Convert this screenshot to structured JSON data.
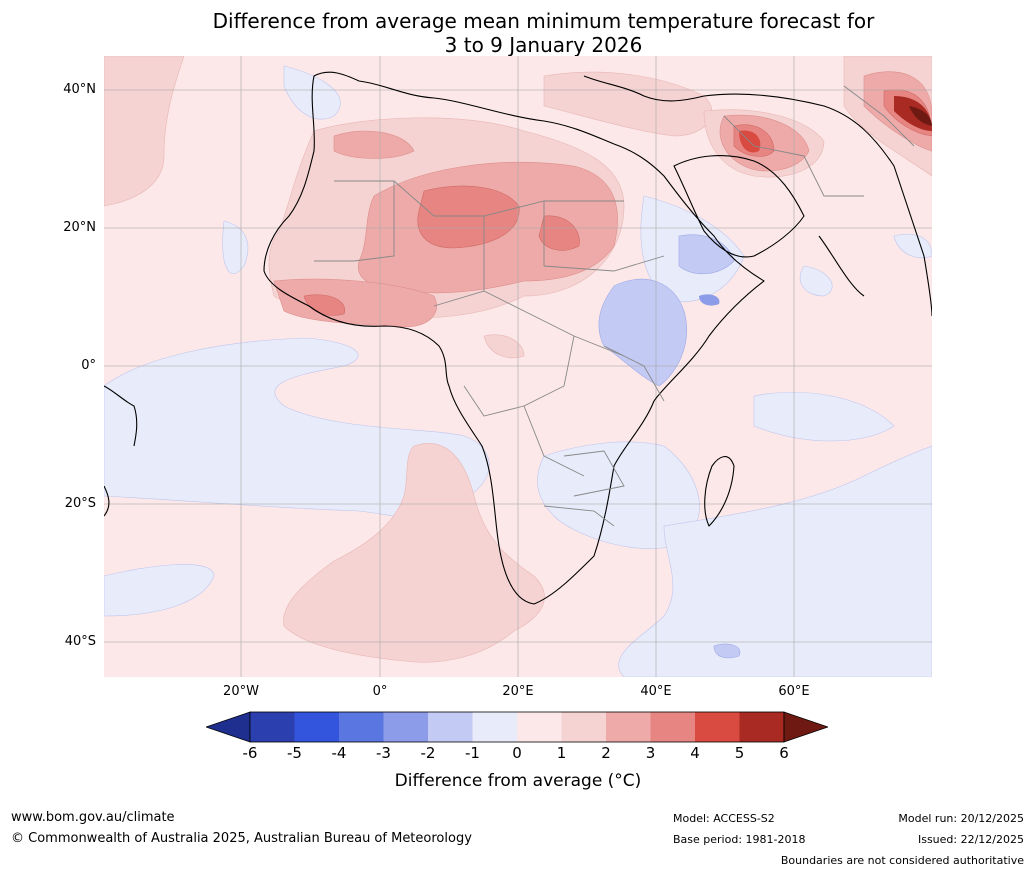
{
  "title_line1": "Difference from average mean minimum temperature forecast for",
  "title_line2": "3 to 9 January 2026",
  "latitude_labels": [
    "40°N",
    "20°N",
    "0°",
    "20°S",
    "40°S"
  ],
  "longitude_labels": [
    "20°W",
    "0°",
    "20°E",
    "40°E",
    "60°E"
  ],
  "colorbar": {
    "ticks": [
      "-6",
      "-5",
      "-4",
      "-3",
      "-2",
      "-1",
      "0",
      "1",
      "2",
      "3",
      "4",
      "5",
      "6"
    ],
    "colors": [
      "#1f2f8f",
      "#2c3fae",
      "#3355dd",
      "#5a76e0",
      "#8c9ce8",
      "#c3caf4",
      "#e8ebfa",
      "#fce8e8",
      "#f5d3d3",
      "#edaaa8",
      "#e68582",
      "#d94a40",
      "#a82a22",
      "#6e1a12"
    ],
    "label": "Difference from average (°C)"
  },
  "footer": {
    "website": "www.bom.gov.au/climate",
    "copyright": "© Commonwealth of Australia 2025, Australian Bureau of Meteorology",
    "model": "Model: ACCESS-S2",
    "base_period": "Base period: 1981-2018",
    "model_run": "Model run: 20/12/2025",
    "issued": "Issued: 22/12/2025",
    "disclaimer": "Boundaries are not considered authoritative"
  }
}
